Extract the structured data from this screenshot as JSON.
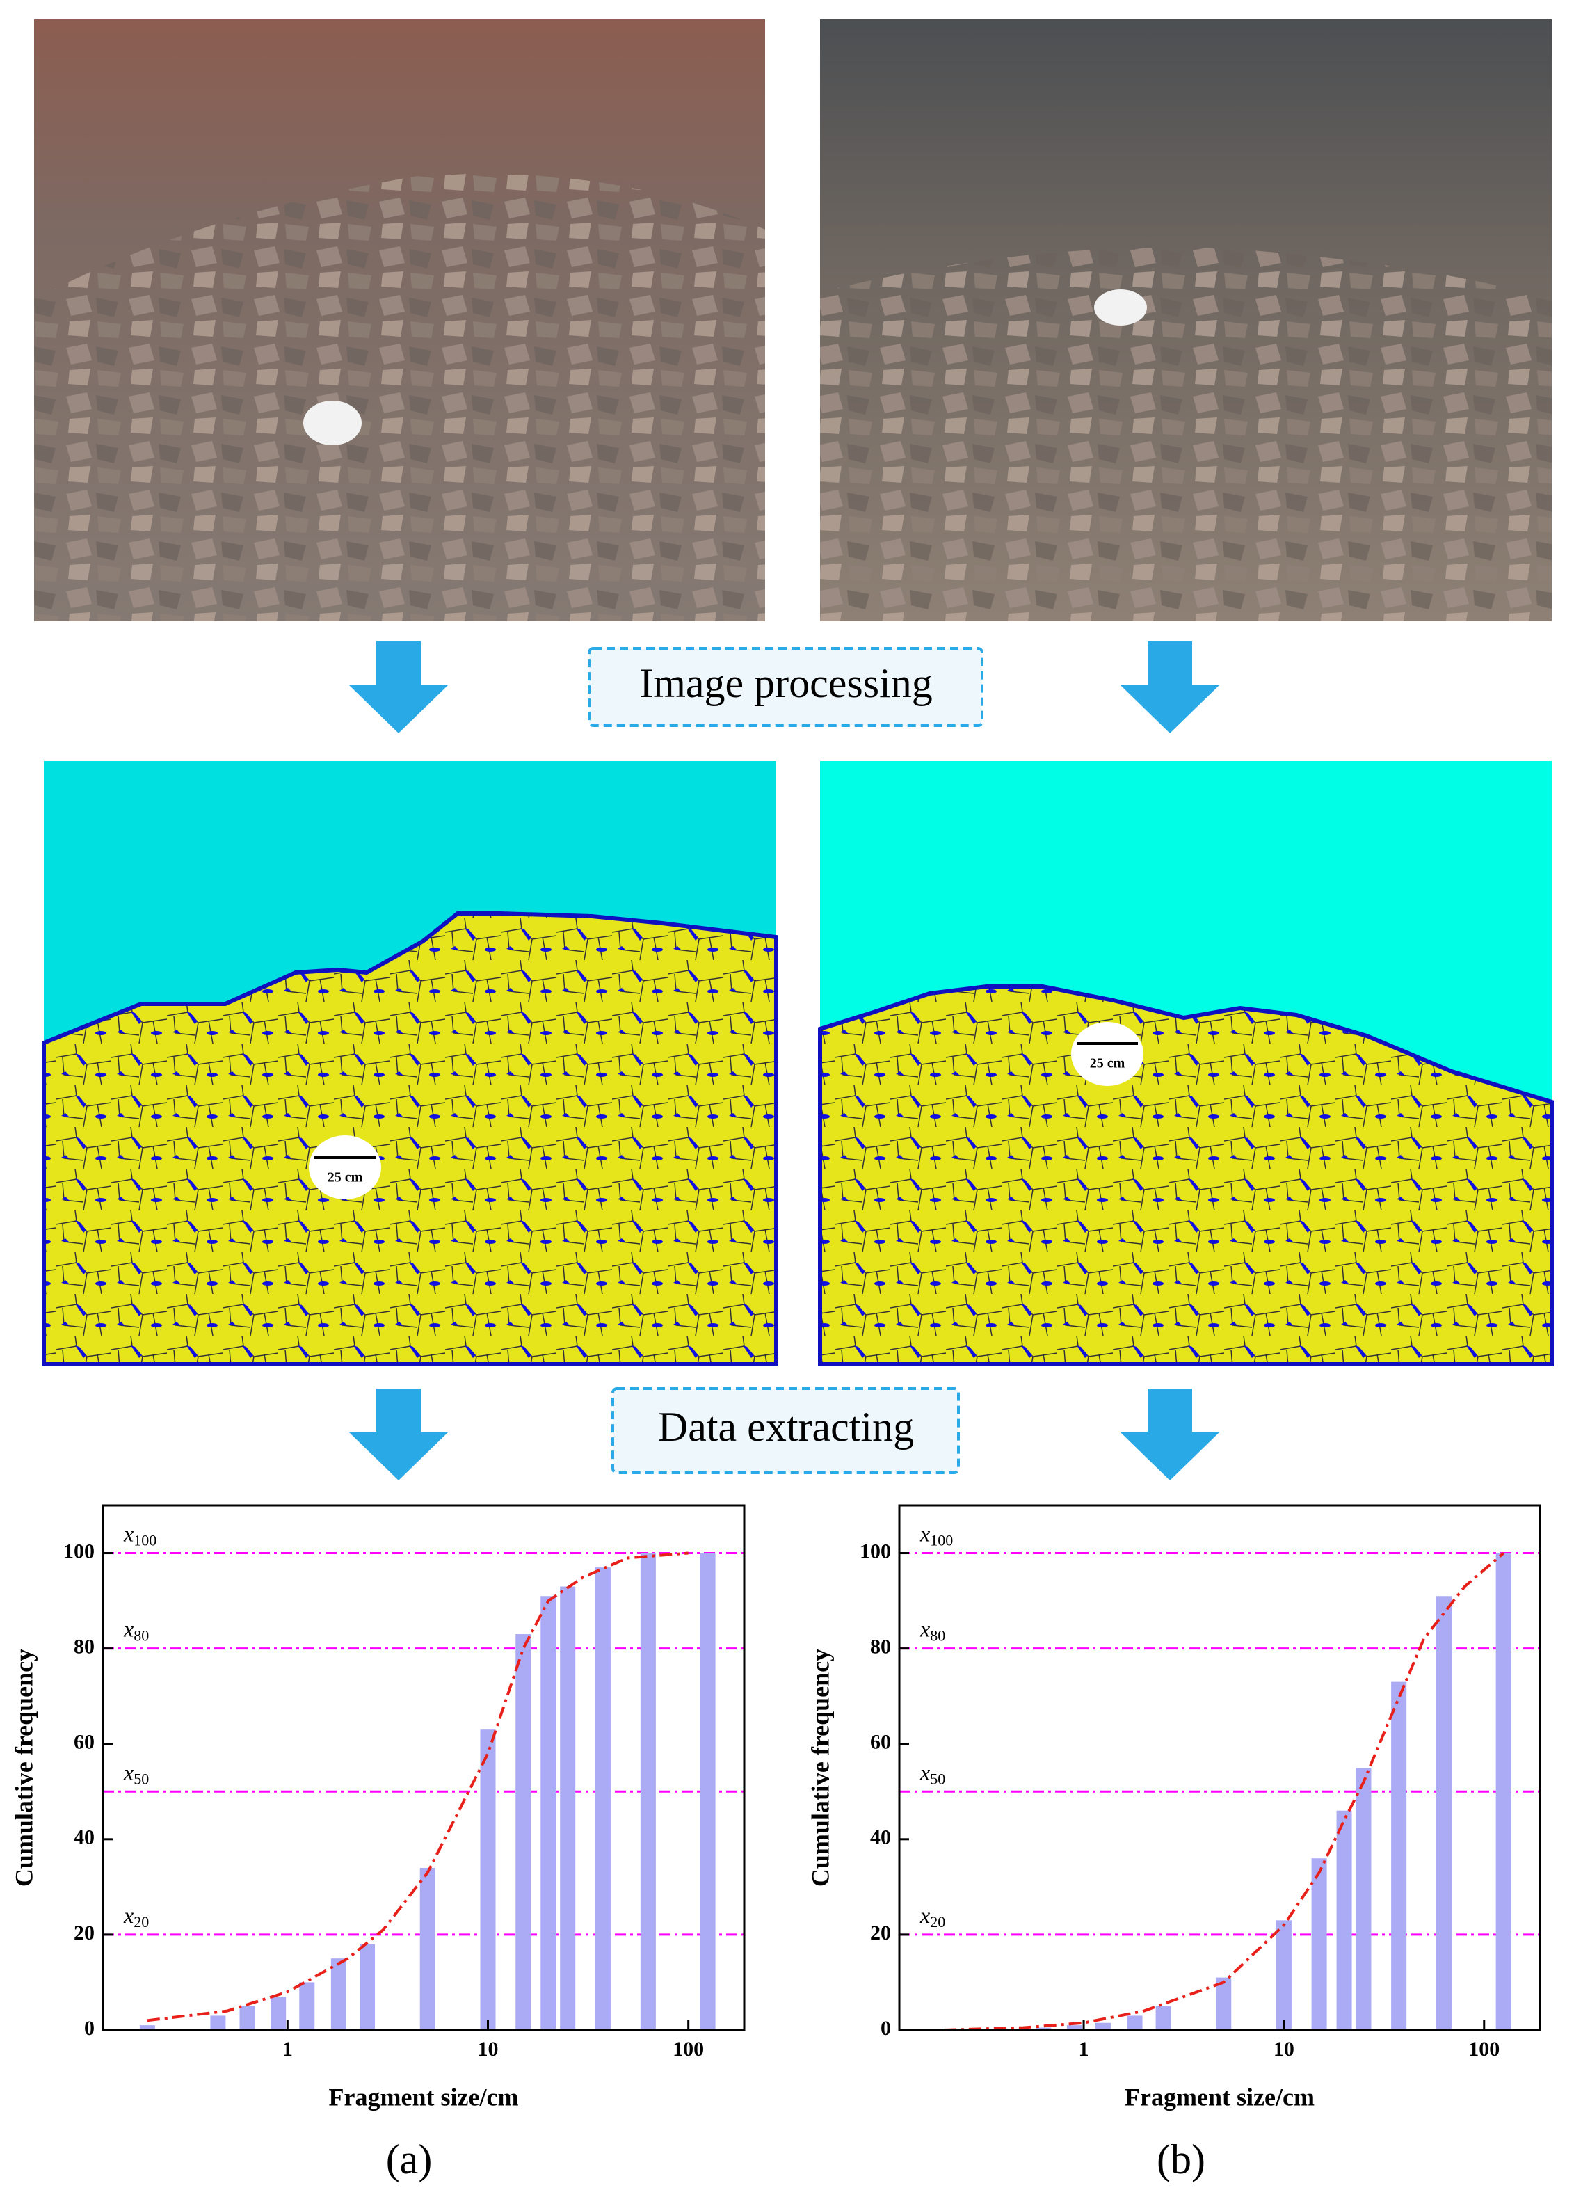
{
  "captions": {
    "image_processing": "Image processing",
    "data_extracting": "Data extracting",
    "scale_a": "25 cm",
    "scale_b": "25 cm"
  },
  "chart_data": [
    {
      "type": "bar",
      "panel_label": "(a)",
      "x_label": "Fragment size/cm",
      "y_label": "Cumulative frequency",
      "xscale": "log",
      "xlim": [
        0.12,
        190
      ],
      "xticks": [
        1,
        10,
        100
      ],
      "ylim": [
        0,
        110
      ],
      "yticks": [
        0,
        20,
        40,
        60,
        80,
        100
      ],
      "reference_lines": {
        "color": "#ff00ff",
        "lines": [
          {
            "y": 100,
            "label": "x"
          },
          {
            "y": 80,
            "label": "x"
          },
          {
            "y": 50,
            "label": "x"
          },
          {
            "y": 20,
            "label": "x"
          }
        ]
      },
      "series": [
        {
          "type": "bar",
          "color": "#aaaaf5",
          "x": [
            0.2,
            0.45,
            0.63,
            0.9,
            1.25,
            1.8,
            2.5,
            5,
            10,
            15,
            20,
            25,
            37.5,
            63,
            125
          ],
          "values": [
            1,
            3,
            5,
            7,
            10,
            15,
            18,
            34,
            63,
            83,
            91,
            93,
            97,
            100,
            100
          ]
        },
        {
          "type": "line",
          "color": "#e8201a",
          "x": [
            0.2,
            0.5,
            1,
            2,
            3,
            5,
            10,
            15,
            20,
            30,
            50,
            100
          ],
          "values": [
            2,
            4,
            8,
            15,
            21,
            33,
            58,
            80,
            90,
            95,
            99,
            100
          ]
        }
      ]
    },
    {
      "type": "bar",
      "panel_label": "(b)",
      "x_label": "Fragment size/cm",
      "y_label": "Cumulative frequency",
      "xscale": "log",
      "xlim": [
        0.12,
        190
      ],
      "xticks": [
        1,
        10,
        100
      ],
      "ylim": [
        0,
        110
      ],
      "yticks": [
        0,
        20,
        40,
        60,
        80,
        100
      ],
      "reference_lines": {
        "color": "#ff00ff",
        "lines": [
          {
            "y": 100,
            "label": "x"
          },
          {
            "y": 80,
            "label": "x"
          },
          {
            "y": 50,
            "label": "x"
          },
          {
            "y": 20,
            "label": "x"
          }
        ]
      },
      "series": [
        {
          "type": "bar",
          "color": "#aaaaf5",
          "x": [
            0.45,
            0.63,
            0.9,
            1.25,
            1.8,
            2.5,
            5,
            10,
            15,
            20,
            25,
            37.5,
            63,
            125
          ],
          "values": [
            0.3,
            0.5,
            1,
            1.5,
            3,
            5,
            11,
            23,
            36,
            46,
            55,
            73,
            91,
            100
          ]
        },
        {
          "type": "line",
          "color": "#e8201a",
          "x": [
            0.2,
            0.5,
            1,
            2,
            5,
            10,
            15,
            20,
            25,
            30,
            50,
            80,
            125
          ],
          "values": [
            0,
            0.5,
            1.5,
            4,
            10,
            22,
            33,
            44,
            52,
            60,
            82,
            93,
            100
          ]
        }
      ]
    }
  ]
}
